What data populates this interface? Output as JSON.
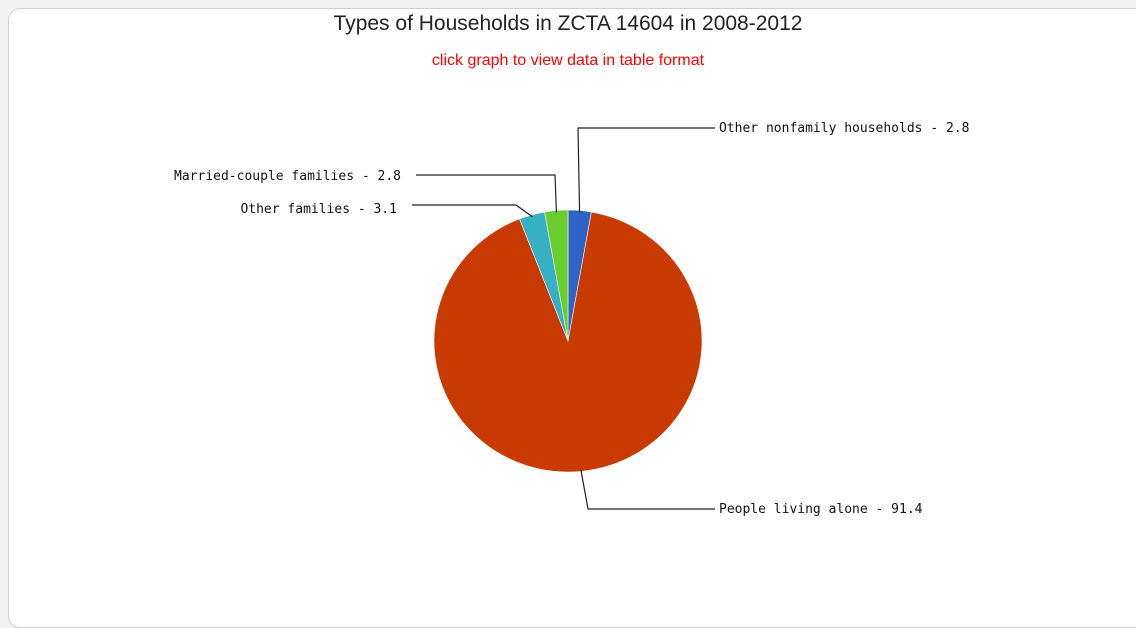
{
  "chart_data": {
    "type": "pie",
    "title": "Types of Households in ZCTA 14604 in 2008-2012",
    "subtitle": "click graph to view data in table format",
    "slices": [
      {
        "label": "Other nonfamily households",
        "value": 2.8,
        "color": "#2e63c7",
        "text": "Other nonfamily households - 2.8"
      },
      {
        "label": "People living alone",
        "value": 91.4,
        "color": "#c83a00",
        "text": "People living alone - 91.4"
      },
      {
        "label": "Other families",
        "value": 3.1,
        "color": "#37b0c4",
        "text": "Other families - 3.1"
      },
      {
        "label": "Married-couple families",
        "value": 2.8,
        "color": "#6bcc2e",
        "text": "Married-couple families - 2.8"
      }
    ]
  }
}
